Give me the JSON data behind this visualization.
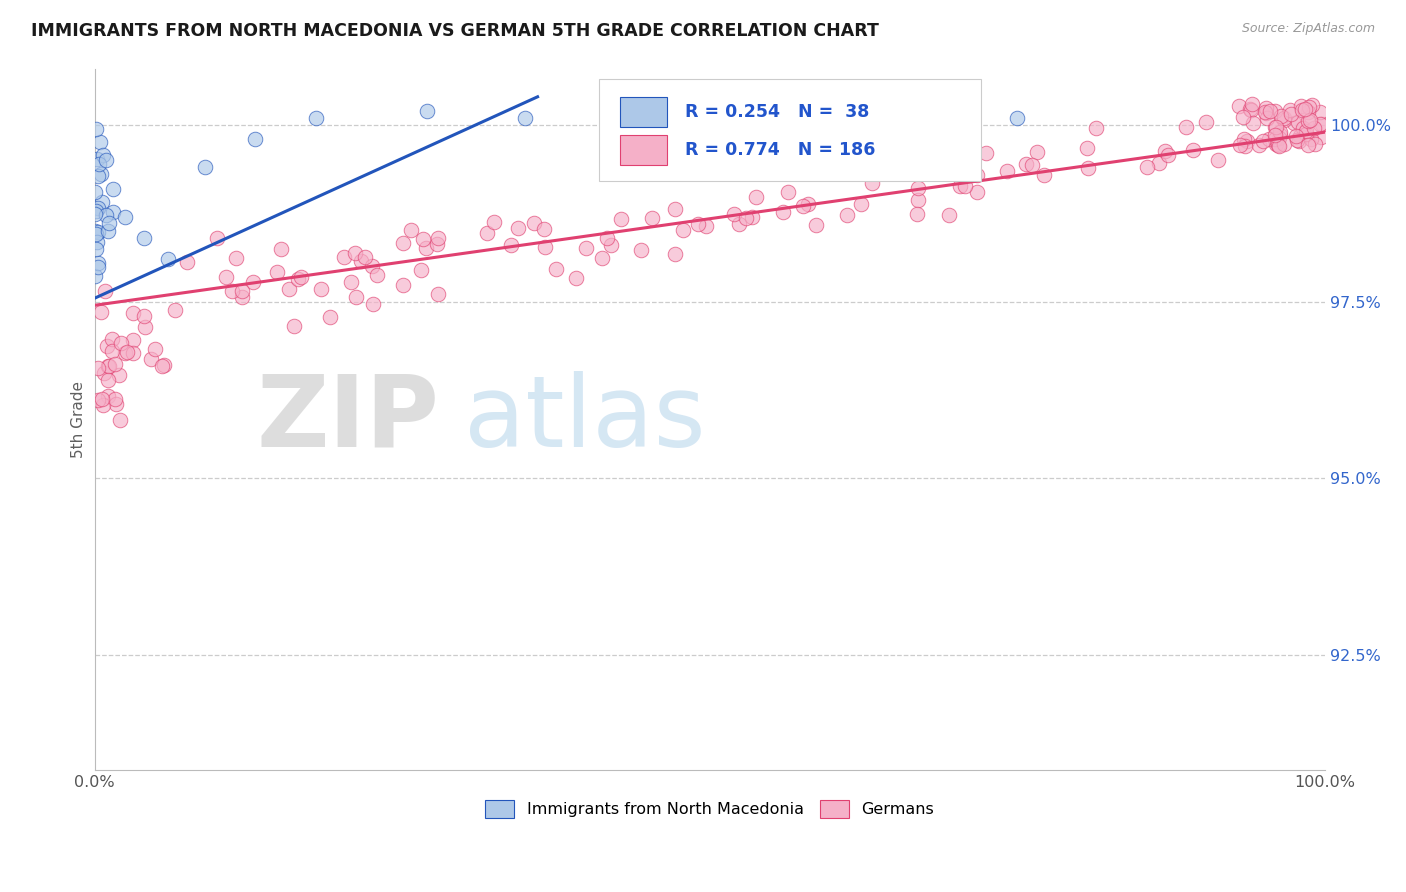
{
  "title": "IMMIGRANTS FROM NORTH MACEDONIA VS GERMAN 5TH GRADE CORRELATION CHART",
  "source": "Source: ZipAtlas.com",
  "ylabel": "5th Grade",
  "xlim": [
    0.0,
    1.0
  ],
  "ylim": [
    0.9088,
    1.008
  ],
  "yticks": [
    0.925,
    0.95,
    0.975,
    1.0
  ],
  "ytick_labels": [
    "92.5%",
    "95.0%",
    "97.5%",
    "100.0%"
  ],
  "xticks": [
    0.0,
    0.5,
    1.0
  ],
  "xtick_labels": [
    "0.0%",
    "",
    "100.0%"
  ],
  "blue_R": 0.254,
  "blue_N": 38,
  "pink_R": 0.774,
  "pink_N": 186,
  "blue_color": "#adc8e8",
  "pink_color": "#f5b0c8",
  "blue_line_color": "#2255bb",
  "pink_line_color": "#e04070",
  "watermark_zip": "ZIP",
  "watermark_atlas": "atlas",
  "legend_blue_label": "Immigrants from North Macedonia",
  "legend_pink_label": "Germans",
  "background_color": "#ffffff",
  "grid_color": "#cccccc",
  "title_color": "#1a1a1a",
  "legend_R_color": "#2255cc",
  "blue_line_start_x": 0.0,
  "blue_line_end_x": 0.36,
  "blue_line_start_y": 0.9755,
  "blue_line_end_y": 1.004,
  "pink_line_start_x": 0.0,
  "pink_line_end_x": 1.0,
  "pink_line_start_y": 0.9745,
  "pink_line_end_y": 0.999
}
